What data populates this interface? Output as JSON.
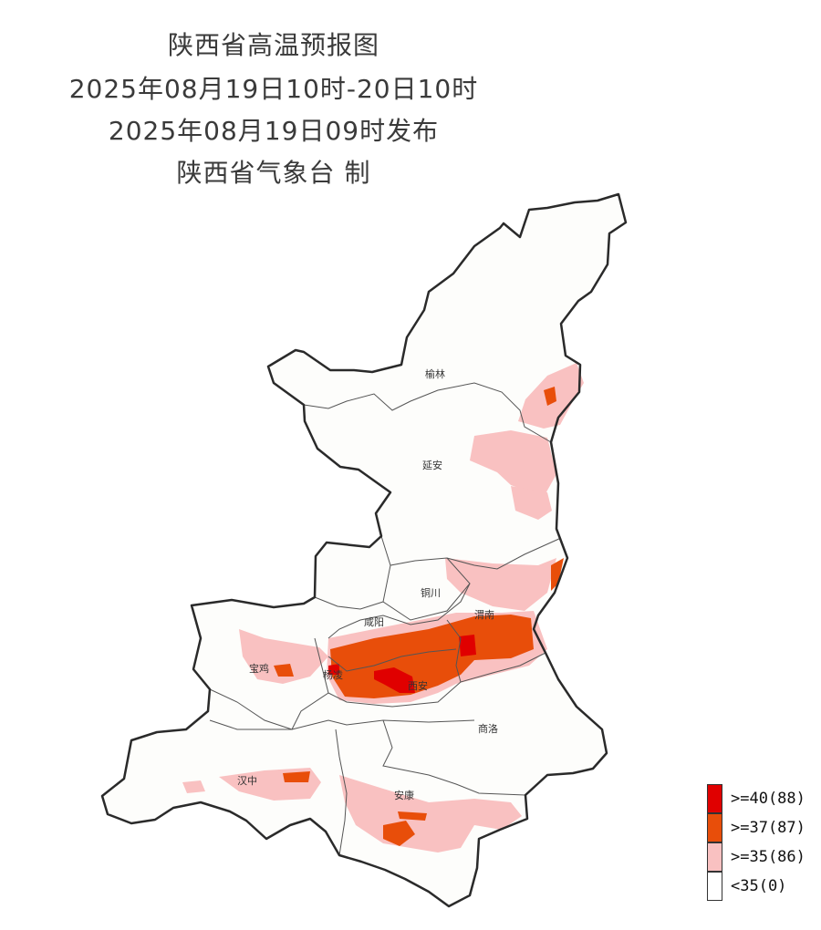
{
  "title": {
    "line1": "陕西省高温预报图",
    "line2": "2025年08月19日10时-20日10时",
    "line3": "2025年08月19日09时发布",
    "line4": "陕西省气象台 制"
  },
  "cities": [
    {
      "id": "yulin",
      "label": "榆林"
    },
    {
      "id": "yanan",
      "label": "延安"
    },
    {
      "id": "tongchuan",
      "label": "铜川"
    },
    {
      "id": "weinan",
      "label": "渭南"
    },
    {
      "id": "xianyang",
      "label": "咸阳"
    },
    {
      "id": "baoji",
      "label": "宝鸡"
    },
    {
      "id": "yangling",
      "label": "杨凌"
    },
    {
      "id": "xian",
      "label": "西安"
    },
    {
      "id": "shangluo",
      "label": "商洛"
    },
    {
      "id": "hanzhong",
      "label": "汉中"
    },
    {
      "id": "ankang",
      "label": "安康"
    }
  ],
  "legend": [
    {
      "label": ">=40(88)",
      "color": "#e00000"
    },
    {
      "label": ">=37(87)",
      "color": "#e84e0a"
    },
    {
      "label": ">=35(86)",
      "color": "#f9c1c1"
    },
    {
      "label": "<35(0)",
      "color": "#ffffff"
    }
  ],
  "colors": {
    "border": "#2a2a2a",
    "inner_border": "#555555"
  }
}
